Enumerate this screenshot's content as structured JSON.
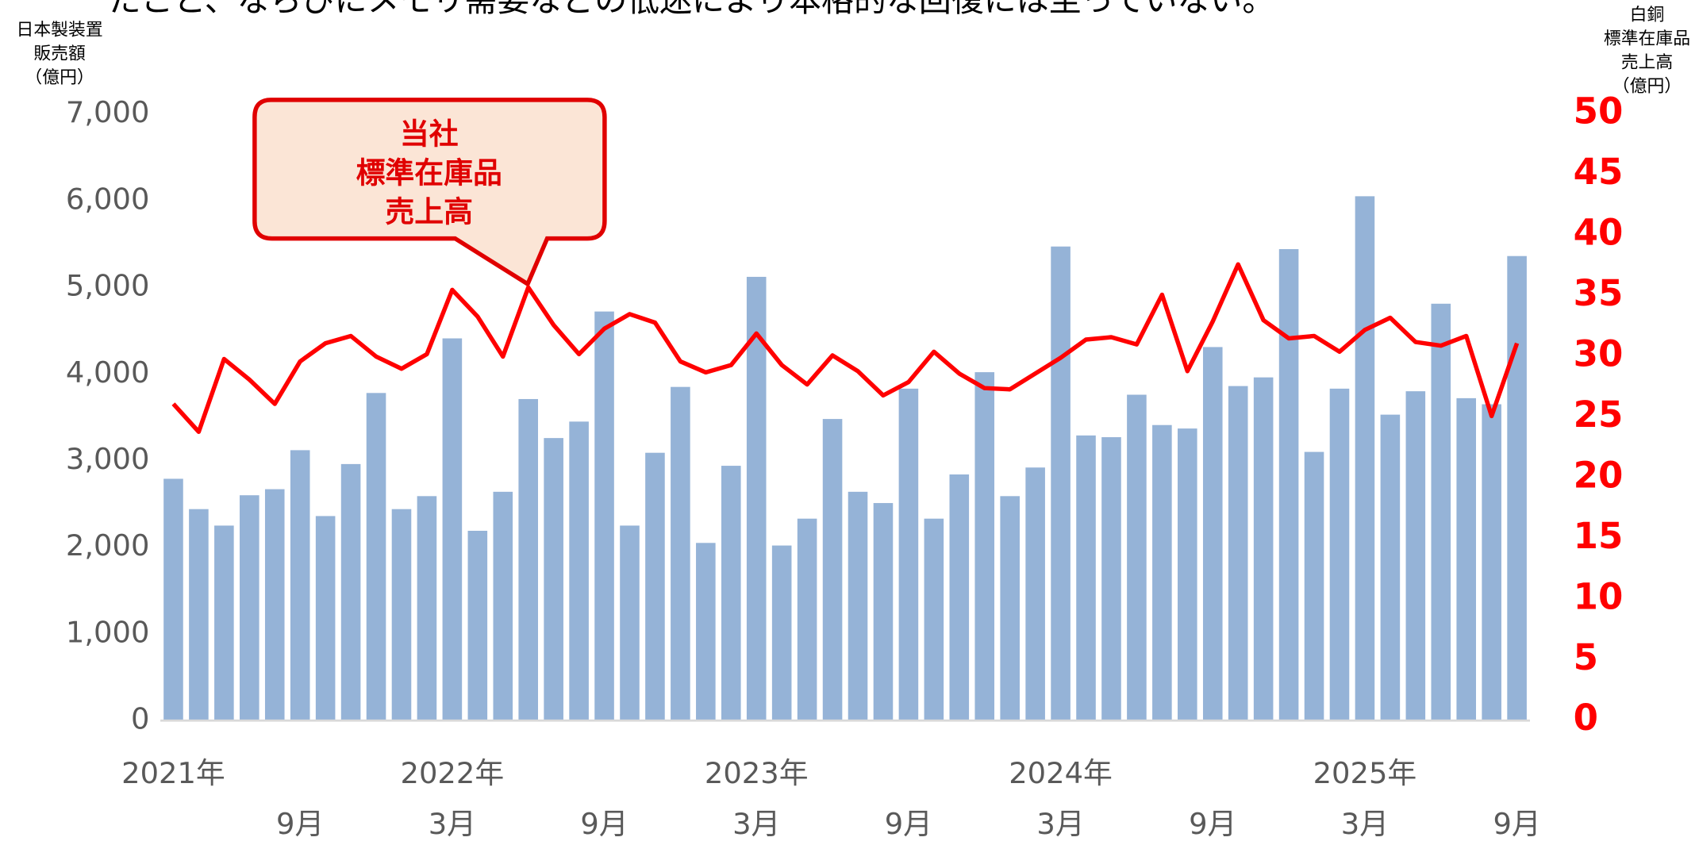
{
  "chart_data": {
    "type": "bar_line",
    "subtitle": "たこと、ならびにメモリ需要などの低迷により本格的な回復には至っていない。",
    "ylabel": [
      "日本製装置",
      "販売額",
      "（億円）"
    ],
    "y2label": [
      "白銅",
      "標準在庫品",
      "売上高",
      "（億円）"
    ],
    "annotation": [
      "当社",
      "標準在庫品",
      "売上高"
    ],
    "categories": [
      null,
      null,
      null,
      null,
      null,
      "9月",
      null,
      null,
      null,
      null,
      null,
      "3月",
      null,
      null,
      null,
      null,
      null,
      "9月",
      null,
      null,
      null,
      null,
      null,
      "3月",
      null,
      null,
      null,
      null,
      null,
      "9月",
      null,
      null,
      null,
      null,
      null,
      "3月",
      null,
      null,
      null,
      null,
      null,
      "9月",
      null,
      null,
      null,
      null,
      null,
      "3月",
      null,
      null,
      null,
      null,
      null,
      "9月"
    ],
    "year_labels": [
      "2021年",
      null,
      null,
      null,
      null,
      null,
      null,
      null,
      null,
      null,
      null,
      "2022年",
      null,
      null,
      null,
      null,
      null,
      null,
      null,
      null,
      null,
      null,
      null,
      "2023年",
      null,
      null,
      null,
      null,
      null,
      null,
      null,
      null,
      null,
      null,
      null,
      "2024年",
      null,
      null,
      null,
      null,
      null,
      null,
      null,
      null,
      null,
      null,
      null,
      "2025年",
      null,
      null,
      null,
      null,
      null,
      null
    ],
    "series": [
      {
        "color": "#95b3d7",
        "values": [
          2790,
          2440,
          2250,
          2600,
          2670,
          3120,
          2360,
          2960,
          3780,
          2440,
          2590,
          4410,
          2190,
          2640,
          3710,
          3260,
          3450,
          4720,
          2250,
          3090,
          3850,
          2050,
          2940,
          5120,
          2020,
          2330,
          3480,
          2640,
          2510,
          3830,
          2330,
          2840,
          4020,
          2590,
          2920,
          5470,
          3290,
          3270,
          3760,
          3410,
          3370,
          4310,
          3860,
          3960,
          5440,
          3100,
          3830,
          6050,
          3530,
          3800,
          4810,
          3720,
          3650,
          5360
        ]
      },
      {
        "color": "#ff0000",
        "axis": "y2",
        "values": [
          26.1,
          23.8,
          29.8,
          28.1,
          26.1,
          29.6,
          31.1,
          31.7,
          30.0,
          29.0,
          30.2,
          35.5,
          33.3,
          30.0,
          35.7,
          32.6,
          30.2,
          32.3,
          33.5,
          32.8,
          29.6,
          28.7,
          29.3,
          31.9,
          29.3,
          27.7,
          30.1,
          28.8,
          26.8,
          27.9,
          30.4,
          28.6,
          27.4,
          27.3,
          28.6,
          29.9,
          31.4,
          31.6,
          31.0,
          35.1,
          28.8,
          32.9,
          37.6,
          33.0,
          31.5,
          31.7,
          30.4,
          32.2,
          33.2,
          31.2,
          30.9,
          31.7,
          25.1,
          31.1
        ]
      }
    ],
    "ylim": [
      0,
      7000
    ],
    "yticks": [
      0,
      {
        "value": 1000,
        "label": "1,000"
      },
      {
        "value": 2000,
        "label": "2,000"
      },
      {
        "value": 3000,
        "label": "3,000"
      },
      {
        "value": 4000,
        "label": "4,000"
      },
      {
        "value": 5000,
        "label": "5,000"
      },
      {
        "value": 6000,
        "label": "6,000"
      },
      {
        "value": 7000,
        "label": "7,000"
      }
    ],
    "y2lim": [
      0,
      50
    ],
    "y2ticks": [
      0,
      5,
      10,
      15,
      20,
      25,
      30,
      35,
      40,
      45,
      50
    ]
  }
}
